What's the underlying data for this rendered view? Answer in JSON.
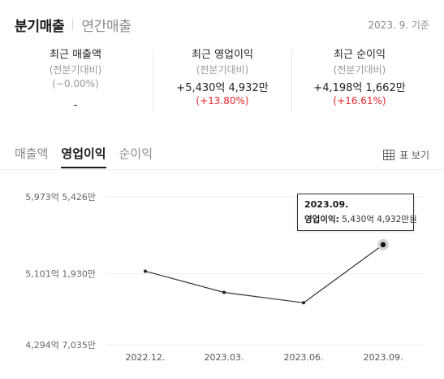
{
  "header": {
    "tabs": [
      {
        "label": "분기매출",
        "active": true
      },
      {
        "label": "연간매출",
        "active": false
      }
    ],
    "as_of": "2023. 9. 기준"
  },
  "stats": [
    {
      "title": "최근 매출액",
      "sub": "(전분기대비)",
      "value": "",
      "change": "(−0.00%)",
      "extra": "-"
    },
    {
      "title": "최근 영업이익",
      "sub": "(전분기대비)",
      "value": "+5,430억 4,932만",
      "change": "(+13.80%)"
    },
    {
      "title": "최근 순이익",
      "sub": "(전분기대비)",
      "value": "+4,198억 1,662만",
      "change": "(+16.61%)"
    }
  ],
  "metric_tabs": [
    {
      "label": "매출액",
      "active": false
    },
    {
      "label": "영업이익",
      "active": true
    },
    {
      "label": "순이익",
      "active": false
    }
  ],
  "table_view_label": "표 보기",
  "colors": {
    "up": "#e6252e",
    "line": "#333333",
    "grid": "#ececec"
  },
  "chart_data": {
    "type": "line",
    "x": [
      "2022.12.",
      "2023.03.",
      "2023.06.",
      "2023.09."
    ],
    "series": [
      {
        "name": "영업이익",
        "values_won": [
          513000000000,
          489000000000,
          477176000000,
          543049320000
        ]
      }
    ],
    "y_ticks": [
      {
        "value": 429470350000,
        "label": "4,294억 7,035만"
      },
      {
        "value": 510119300000,
        "label": "5,101억 1,930만"
      },
      {
        "value": 597354260000,
        "label": "5,973억 5,426만"
      }
    ],
    "ylim": [
      429470350000,
      597354260000
    ],
    "grid": true,
    "tooltip": {
      "date": "2023.09.",
      "label": "영업이익:",
      "value": "5,430억 4,932만원"
    }
  }
}
